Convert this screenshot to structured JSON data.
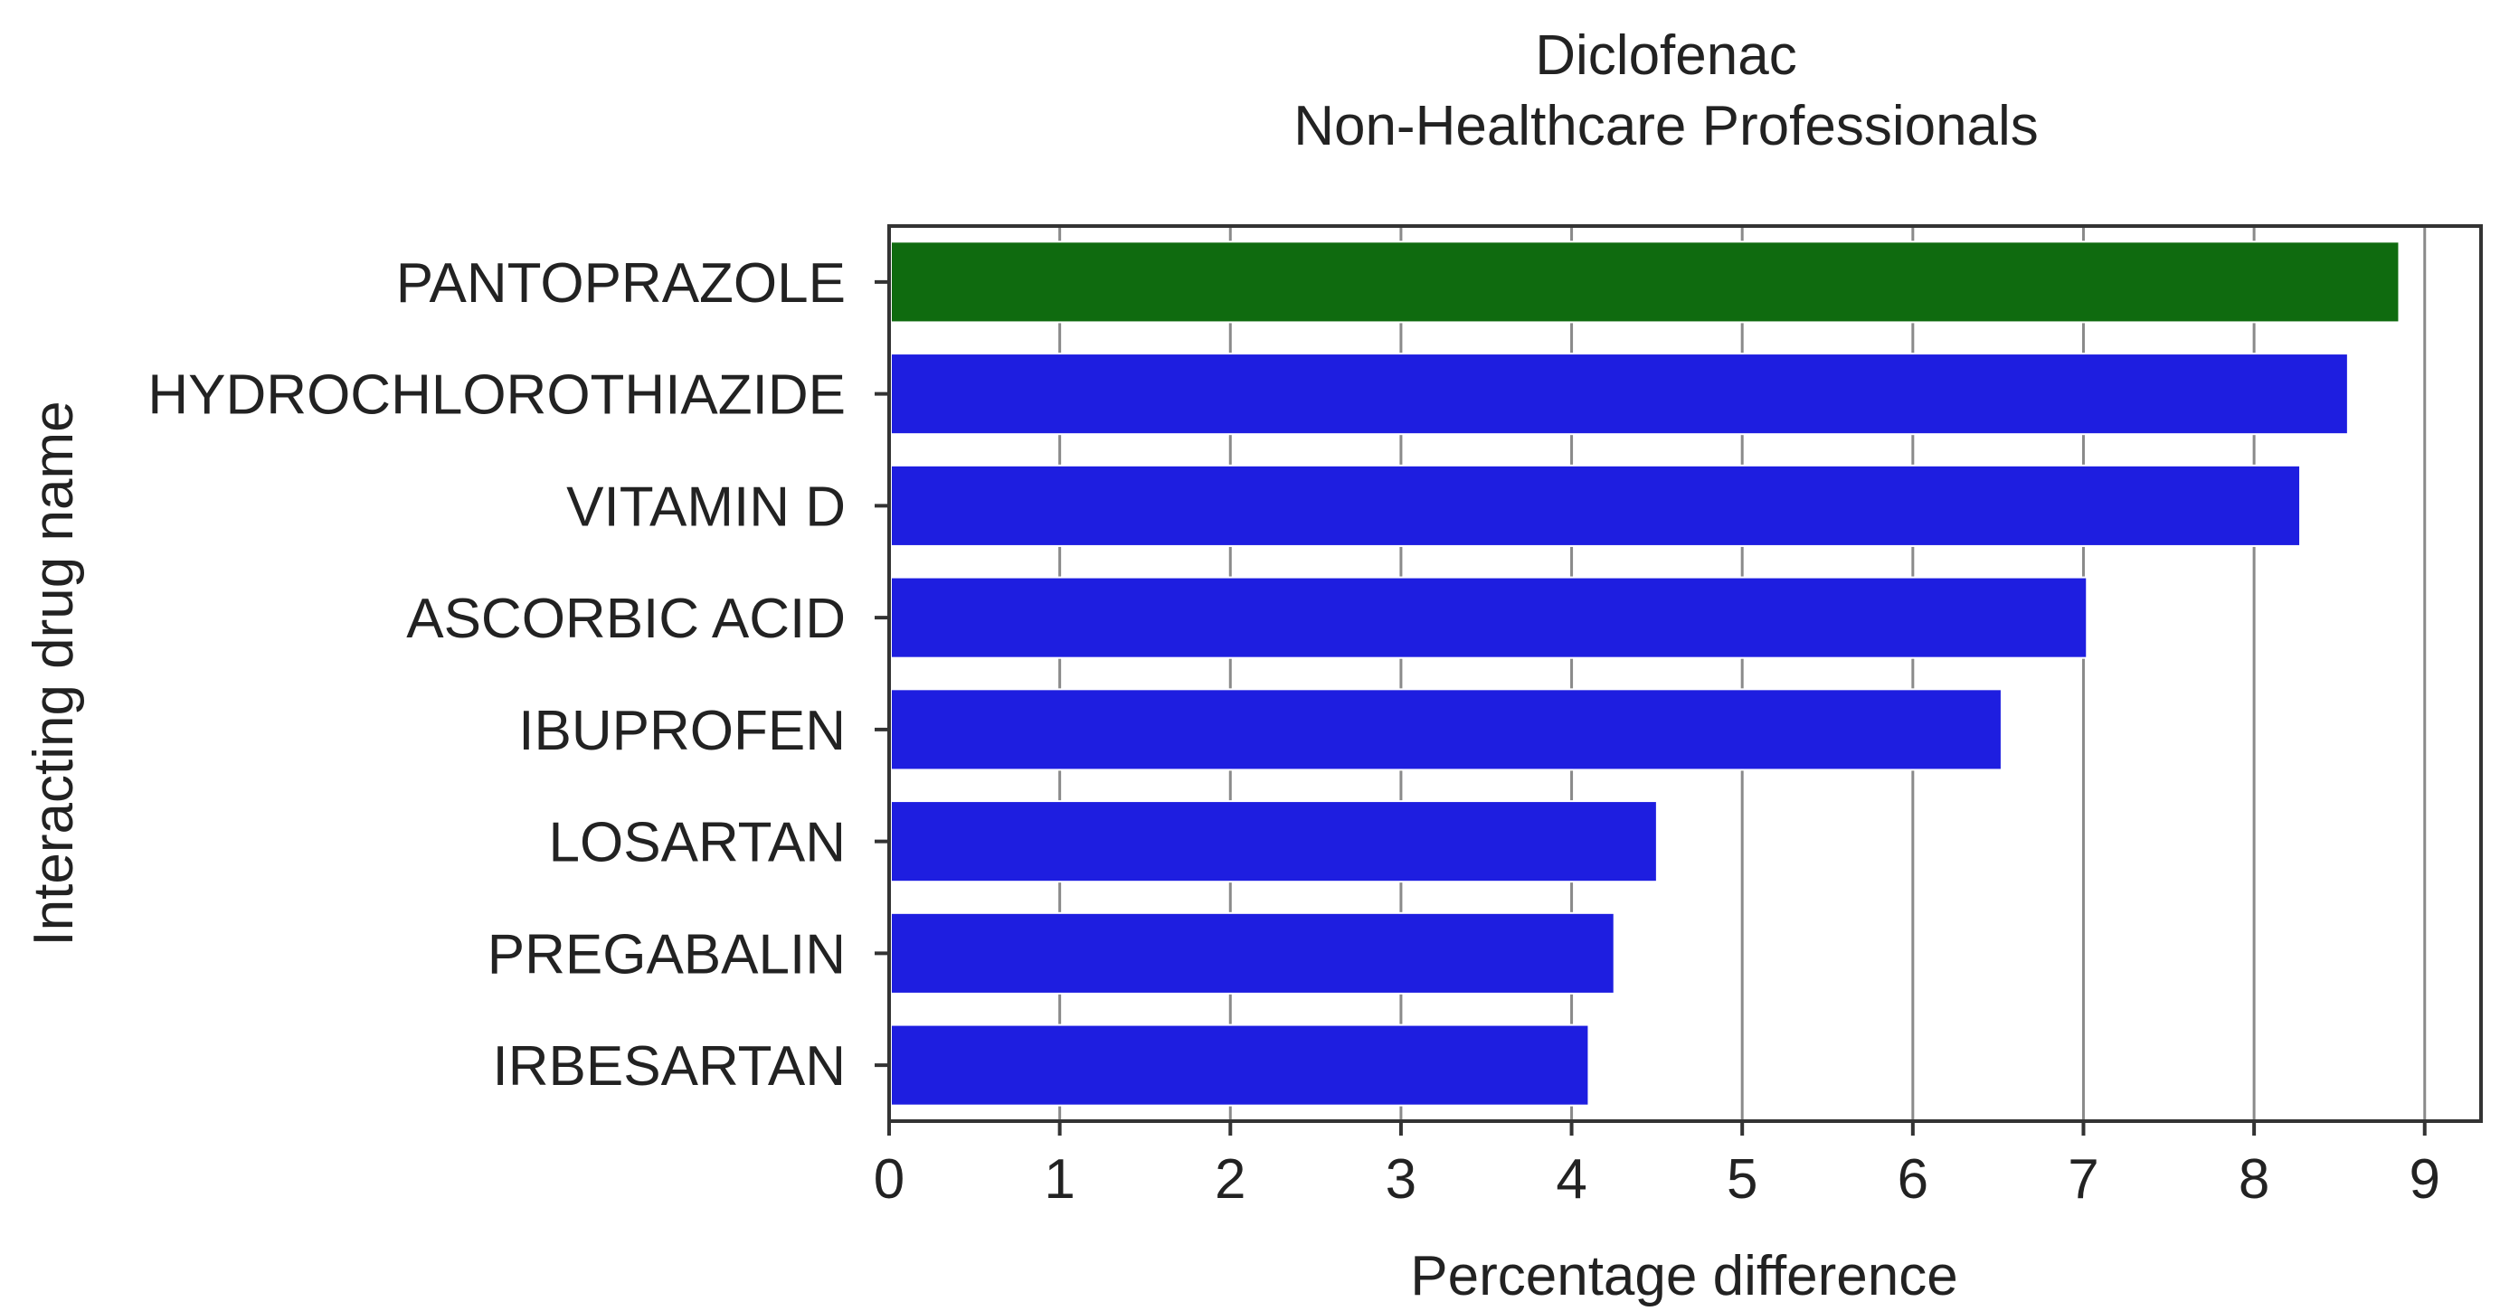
{
  "chart_data": {
    "type": "bar",
    "orientation": "horizontal",
    "title": [
      "Diclofenac",
      "Non-Healthcare Professionals"
    ],
    "xlabel": "Percentage difference",
    "ylabel": "Interacting drug name",
    "xlim": [
      0,
      9.33
    ],
    "xticks": [
      "0",
      "1",
      "2",
      "3",
      "4",
      "5",
      "6",
      "7",
      "8",
      "9"
    ],
    "grid": "vertical",
    "categories": [
      "PANTOPRAZOLE",
      "HYDROCHLOROTHIAZIDE",
      "VITAMIN D",
      "ASCORBIC ACID",
      "IBUPROFEN",
      "LOSARTAN",
      "PREGABALIN",
      "IRBESARTAN"
    ],
    "values": [
      8.85,
      8.55,
      8.27,
      7.02,
      6.52,
      4.5,
      4.25,
      4.1
    ],
    "colors": [
      "#0f6b0f",
      "#1e1ee0",
      "#1e1ee0",
      "#1e1ee0",
      "#1e1ee0",
      "#1e1ee0",
      "#1e1ee0",
      "#1e1ee0"
    ]
  }
}
